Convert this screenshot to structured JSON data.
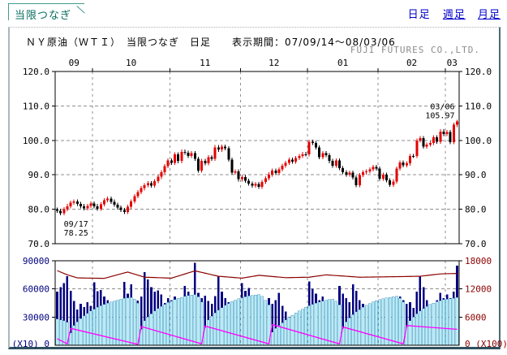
{
  "header": {
    "tab_label": "当限つなぎ",
    "links": [
      {
        "label": "日足",
        "underlined": false,
        "current": true
      },
      {
        "label": "週足",
        "underlined": true,
        "current": false
      },
      {
        "label": "月足",
        "underlined": true,
        "current": false
      }
    ],
    "title": "ＮＹ原油（ＷＴＩ）　当限つなぎ　日足　　表示期間：07/09/14～08/03/06",
    "company": "FUJI FUTURES CO.,LTD."
  },
  "colors": {
    "up_candle": "#e60000",
    "down_candle": "#000000",
    "grid": "#8f8f8f",
    "frame": "#000000",
    "volume_bar": "#000080",
    "open_interest_bar_fill": "#b6ecf8",
    "open_interest_bar_stroke": "#2e7fae",
    "total_oi_line": "#8b0000",
    "contract_oi_line": "#ff00ff",
    "left_axis_text": "#000080",
    "right_axis_text": "#8b0000",
    "link_blue": "#0000cc",
    "tab_teal": "#3f9c8c",
    "company_gray": "#8c8c8c"
  },
  "chart_data": {
    "price_panel": {
      "type": "candlestick",
      "title": "ＮＹ原油（ＷＴＩ） 当限つなぎ 日足",
      "period": "07/09/14～08/03/06",
      "ylim": [
        70,
        120
      ],
      "ytick_values": [
        120,
        110,
        100,
        90,
        80,
        70
      ],
      "ytick_labels": [
        "120.0",
        "110.0",
        "100.0",
        "90.0",
        "80.0",
        "70.0"
      ],
      "months": [
        {
          "label": "09",
          "days": 11
        },
        {
          "label": "10",
          "days": 23
        },
        {
          "label": "11",
          "days": 21
        },
        {
          "label": "12",
          "days": 20
        },
        {
          "label": "01",
          "days": 21
        },
        {
          "label": "02",
          "days": 20
        },
        {
          "label": "03",
          "days": 4
        }
      ],
      "first_open": 79.9,
      "wick": 0.6,
      "closes": [
        79.6,
        78.9,
        80.0,
        80.9,
        81.9,
        82.3,
        81.6,
        80.9,
        80.3,
        81.0,
        81.7,
        80.9,
        80.2,
        81.4,
        82.6,
        83.1,
        82.2,
        81.3,
        80.5,
        79.8,
        79.2,
        80.7,
        82.3,
        83.8,
        85.0,
        86.1,
        87.0,
        87.6,
        86.9,
        88.2,
        89.4,
        90.8,
        92.5,
        94.2,
        93.5,
        95.9,
        94.0,
        96.7,
        96.4,
        95.5,
        96.3,
        94.6,
        91.2,
        94.1,
        93.4,
        95.1,
        94.6,
        98.0,
        97.3,
        98.2,
        97.7,
        94.4,
        90.6,
        91.0,
        88.7,
        89.3,
        88.3,
        87.5,
        86.9,
        87.3,
        86.5,
        87.9,
        89.0,
        90.1,
        91.2,
        90.5,
        91.6,
        92.6,
        93.5,
        94.4,
        93.8,
        94.9,
        95.5,
        96.0,
        96.0,
        99.6,
        99.2,
        97.9,
        95.1,
        96.3,
        95.7,
        94.0,
        92.7,
        94.2,
        91.9,
        90.8,
        90.1,
        90.6,
        89.2,
        87.0,
        89.9,
        90.7,
        91.0,
        91.6,
        92.3,
        91.8,
        88.9,
        90.0,
        88.4,
        87.1,
        88.1,
        91.8,
        93.6,
        92.8,
        93.3,
        95.5,
        95.5,
        100.0,
        100.7,
        98.2,
        98.8,
        99.2,
        100.9,
        99.6,
        102.6,
        101.8,
        102.4,
        99.5,
        104.5,
        105.5
      ],
      "annotations": [
        {
          "day_index": 1,
          "price": 78.25,
          "date_label": "09/17",
          "value_label": "78.25",
          "placement": "below"
        },
        {
          "day_index": 119,
          "price": 105.97,
          "date_label": "03/06",
          "value_label": "105.97",
          "placement": "above"
        }
      ]
    },
    "volume_panel": {
      "type": "bar",
      "left_axis": {
        "max": 90000,
        "tick_values": [
          90000,
          60000,
          30000
        ],
        "tick_labels": [
          "90000",
          "60000",
          "30000"
        ],
        "bottom_label": "(X10) 0"
      },
      "right_axis": {
        "max": 18000,
        "tick_values": [
          18000,
          12000,
          6000
        ],
        "tick_labels": [
          "18000",
          "12000",
          "6000"
        ],
        "bottom_label": "0 (X100)"
      },
      "volume": [
        57000,
        62000,
        66000,
        73500,
        58000,
        47000,
        38000,
        44000,
        40500,
        46000,
        42000,
        67000,
        57500,
        59000,
        52000,
        48000,
        42500,
        44000,
        46500,
        47000,
        67500,
        55000,
        65000,
        43000,
        47500,
        52000,
        78000,
        70000,
        62000,
        57000,
        58500,
        54000,
        45000,
        50000,
        48000,
        52000,
        49000,
        44000,
        63000,
        57000,
        52000,
        88000,
        56000,
        50000,
        53000,
        47000,
        44000,
        52500,
        73000,
        57000,
        50000,
        46000,
        41000,
        37000,
        48000,
        66000,
        58000,
        61000,
        44000,
        52000,
        43000,
        38000,
        46000,
        50000,
        44000,
        48000,
        56000,
        42000,
        36000,
        28000,
        14000,
        18000,
        30000,
        35000,
        32000,
        68000,
        60000,
        55000,
        48000,
        52000,
        46000,
        42000,
        44000,
        47000,
        63000,
        55000,
        50000,
        46000,
        65000,
        58000,
        48000,
        44000,
        40000,
        43000,
        46000,
        38000,
        44000,
        40000,
        36000,
        42000,
        38000,
        46000,
        52000,
        48000,
        44000,
        46000,
        40000,
        57000,
        74000,
        62000,
        48000,
        42000,
        45000,
        48000,
        56000,
        50000,
        54000,
        50000,
        57000,
        85000
      ],
      "open_interest": [
        5600,
        5400,
        5200,
        4900,
        2600,
        4200,
        5000,
        5700,
        6300,
        6800,
        7300,
        7700,
        8100,
        8400,
        8700,
        9000,
        9200,
        9400,
        9600,
        9800,
        10000,
        10100,
        10200,
        9800,
        9000,
        3400,
        5200,
        6000,
        6700,
        7300,
        7800,
        8300,
        8700,
        9100,
        9400,
        9700,
        10000,
        10200,
        10400,
        10600,
        10700,
        10800,
        10300,
        9200,
        3800,
        5400,
        6200,
        6900,
        7500,
        8000,
        8500,
        8900,
        9300,
        9600,
        9900,
        10100,
        10300,
        10500,
        10600,
        10700,
        10800,
        10400,
        9600,
        8600,
        2800,
        3600,
        4200,
        4800,
        5400,
        5900,
        6400,
        6900,
        7300,
        7700,
        8100,
        8400,
        8700,
        9000,
        9200,
        9400,
        9600,
        9700,
        9800,
        9400,
        8600,
        3600,
        5000,
        5800,
        6500,
        7100,
        7600,
        8100,
        8500,
        8900,
        9200,
        9500,
        9700,
        9900,
        10100,
        10200,
        10300,
        10400,
        10000,
        9200,
        3900,
        5200,
        6000,
        6700,
        7300,
        7800,
        8300,
        8700,
        9000,
        9300,
        9500,
        9700,
        9800,
        9900,
        10000,
        10200
      ],
      "total_oi_line": {
        "indices": [
          0,
          3,
          6,
          14,
          21,
          26,
          34,
          41,
          48,
          55,
          60,
          68,
          75,
          80,
          90,
          100,
          108,
          114,
          119
        ],
        "values": [
          15900,
          15000,
          14350,
          14250,
          15600,
          14500,
          14300,
          15850,
          14700,
          14300,
          14900,
          14400,
          14500,
          15000,
          14500,
          14600,
          14700,
          15200,
          15300
        ]
      },
      "contract_oi_line": {
        "segments": [
          {
            "from": 0,
            "to": 3,
            "start": 1400,
            "end": 300
          },
          {
            "from": 4,
            "to": 24,
            "start": 3600,
            "end": 200
          },
          {
            "from": 25,
            "to": 43,
            "start": 4000,
            "end": 300
          },
          {
            "from": 44,
            "to": 63,
            "start": 4100,
            "end": 300
          },
          {
            "from": 64,
            "to": 84,
            "start": 4400,
            "end": 300
          },
          {
            "from": 85,
            "to": 103,
            "start": 3900,
            "end": 300
          },
          {
            "from": 104,
            "to": 119,
            "start": 4200,
            "end": 3400
          }
        ]
      }
    }
  }
}
